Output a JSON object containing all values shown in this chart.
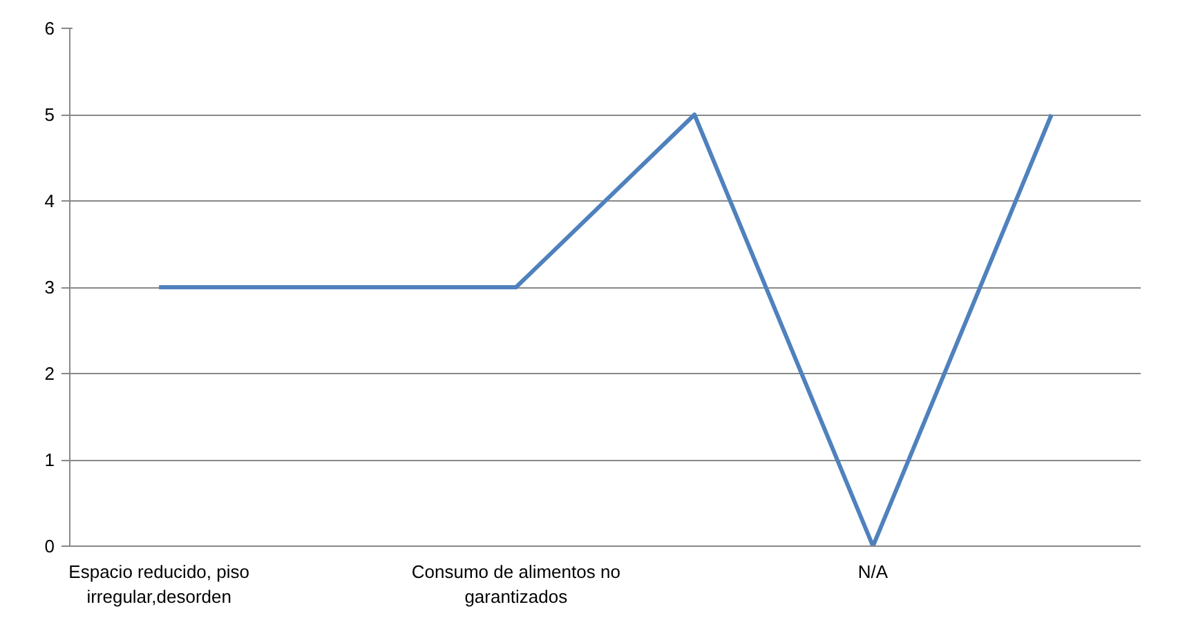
{
  "chart_data": {
    "type": "line",
    "categories": [
      "Espacio reducido, piso irregular,desorden",
      null,
      "Consumo de alimentos no garantizados",
      null,
      "N/A",
      null
    ],
    "series": [
      {
        "color": "#4f81bd",
        "values": [
          3,
          3,
          3,
          5,
          0,
          5
        ]
      }
    ],
    "ylim": [
      0,
      6
    ],
    "yticks": [
      0,
      1,
      2,
      3,
      4,
      5,
      6
    ],
    "grid": "y",
    "marker": "none",
    "line_style": "solid"
  }
}
